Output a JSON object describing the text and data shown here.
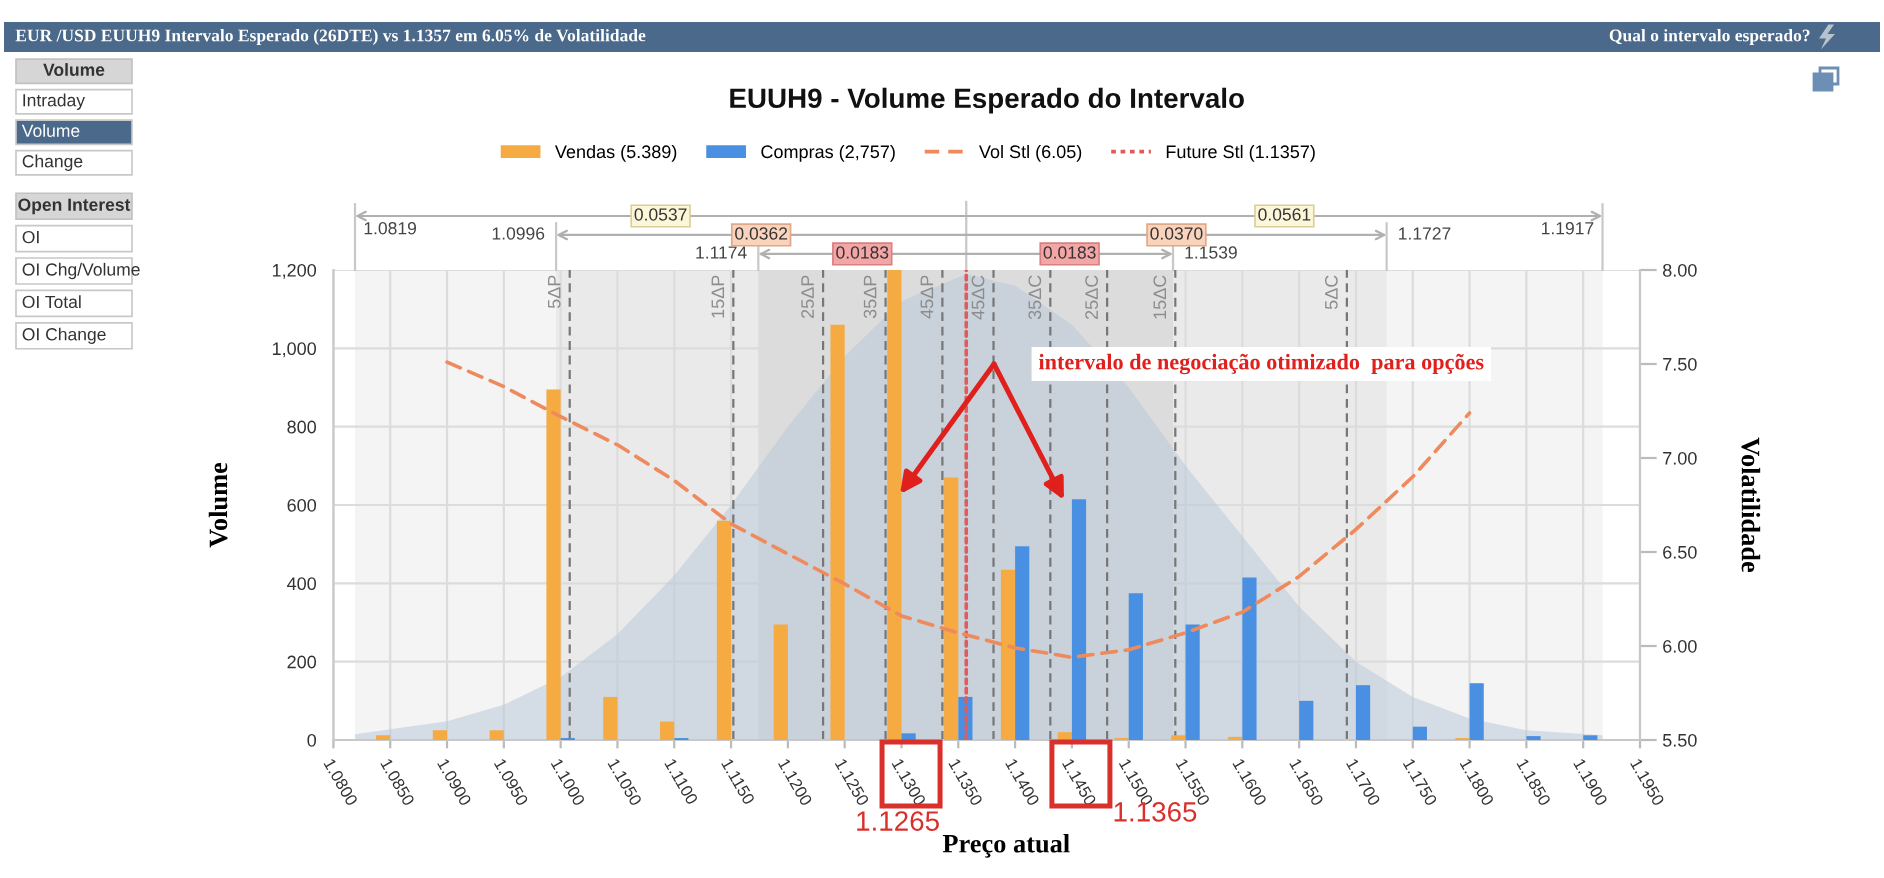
{
  "chart_data": [
    {
      "type": "other",
      "title": "EUR /USD EUUH9 Intervalo Esperado (26DTE) vs 1.1357 em 6.05% de Volatilidade",
      "annotations": [
        "Qual o intervalo esperado?"
      ]
    },
    {
      "type": "other",
      "title": "Volume",
      "annotations": [
        "Intraday",
        "Volume",
        "Change"
      ]
    },
    {
      "type": "other",
      "title": "Open Interest",
      "annotations": [
        "OI",
        "OI Chg/Volume",
        "OI Total",
        "OI Change"
      ]
    },
    {
      "type": "bar",
      "title": "EUUH9 - Volume Esperado do Intervalo",
      "xlabel": "Preço atual",
      "ylabel": "Volume",
      "y2label": "Volatilidade",
      "x": [
        1.085,
        1.09,
        1.095,
        1.1,
        1.105,
        1.11,
        1.115,
        1.12,
        1.125,
        1.13,
        1.135,
        1.14,
        1.145,
        1.15,
        1.155,
        1.16,
        1.165,
        1.17,
        1.175,
        1.18,
        1.185,
        1.19
      ],
      "series": [
        {
          "name": "Vendas (5.389)",
          "color": "#f5aa42",
          "values": [
            12,
            25,
            25,
            895,
            110,
            47,
            560,
            295,
            1060,
            1200,
            670,
            435,
            20,
            5,
            12,
            8,
            null,
            null,
            null,
            5,
            null,
            null
          ]
        },
        {
          "name": "Compras (2,757)",
          "color": "#4a90e2",
          "values": [
            null,
            null,
            null,
            5,
            null,
            5,
            null,
            null,
            null,
            17,
            110,
            495,
            615,
            375,
            295,
            415,
            100,
            140,
            34,
            145,
            10,
            12
          ]
        },
        {
          "name": "Vol Stl (6.05)",
          "type": "line",
          "axis": "y2",
          "color": "#ee8a5c",
          "x": [
            1.09,
            1.095,
            1.1,
            1.105,
            1.11,
            1.115,
            1.12,
            1.125,
            1.13,
            1.135,
            1.14,
            1.145,
            1.15,
            1.155,
            1.16,
            1.165,
            1.17,
            1.175,
            1.18
          ],
          "values": [
            7.51,
            7.38,
            7.22,
            7.07,
            6.88,
            6.65,
            6.49,
            6.33,
            6.16,
            6.07,
            5.99,
            5.94,
            5.98,
            6.07,
            6.18,
            6.37,
            6.62,
            6.9,
            7.24
          ]
        },
        {
          "name": "Future Stl (1.1357)",
          "type": "line",
          "line_style": "dotted",
          "color": "#e05c5c",
          "x": [
            1.1357,
            1.1357
          ],
          "values": [
            0,
            1200
          ]
        },
        {
          "type": "area",
          "color": "#b9c9da",
          "x": [
            1.0819,
            1.09,
            1.095,
            1.1,
            1.105,
            1.11,
            1.115,
            1.12,
            1.125,
            1.13,
            1.1357,
            1.14,
            1.145,
            1.15,
            1.155,
            1.16,
            1.165,
            1.17,
            1.175,
            1.18,
            1.185,
            1.1917
          ],
          "values": [
            15,
            48,
            90,
            160,
            270,
            420,
            600,
            800,
            980,
            1120,
            1190,
            1160,
            1060,
            900,
            700,
            520,
            340,
            200,
            110,
            55,
            25,
            12
          ]
        }
      ],
      "xlim": [
        1.08,
        1.195
      ],
      "xticks": [
        {
          "value": 1.08,
          "label": "1.0800"
        },
        {
          "value": 1.085,
          "label": "1.0850"
        },
        {
          "value": 1.09,
          "label": "1.0900"
        },
        {
          "value": 1.095,
          "label": "1.0950"
        },
        {
          "value": 1.1,
          "label": "1.1000"
        },
        {
          "value": 1.105,
          "label": "1.1050"
        },
        {
          "value": 1.11,
          "label": "1.1100"
        },
        {
          "value": 1.115,
          "label": "1.1150"
        },
        {
          "value": 1.12,
          "label": "1.1200"
        },
        {
          "value": 1.125,
          "label": "1.1250"
        },
        {
          "value": 1.13,
          "label": "1.1300"
        },
        {
          "value": 1.135,
          "label": "1.1350"
        },
        {
          "value": 1.14,
          "label": "1.1400"
        },
        {
          "value": 1.145,
          "label": "1.1450"
        },
        {
          "value": 1.15,
          "label": "1.1500"
        },
        {
          "value": 1.155,
          "label": "1.1550"
        },
        {
          "value": 1.16,
          "label": "1.1600"
        },
        {
          "value": 1.165,
          "label": "1.1650"
        },
        {
          "value": 1.17,
          "label": "1.1700"
        },
        {
          "value": 1.175,
          "label": "1.1750"
        },
        {
          "value": 1.18,
          "label": "1.1800"
        },
        {
          "value": 1.185,
          "label": "1.1850"
        },
        {
          "value": 1.19,
          "label": "1.1900"
        },
        {
          "value": 1.195,
          "label": "1.1950"
        }
      ],
      "ylim": [
        0,
        1200
      ],
      "yticks": [
        0,
        200,
        400,
        600,
        800,
        {
          "value": 1000,
          "label": "1,000"
        },
        {
          "value": 1200,
          "label": "1,200"
        }
      ],
      "y2lim": [
        5.5,
        8
      ],
      "y2ticks": [
        {
          "value": 5.5,
          "label": "5.50"
        },
        {
          "value": 6,
          "label": "6.00"
        },
        {
          "value": 6.5,
          "label": "6.50"
        },
        {
          "value": 7,
          "label": "7.00"
        },
        {
          "value": 7.5,
          "label": "7.50"
        },
        {
          "value": 8,
          "label": "8.00"
        }
      ],
      "bands": [
        {
          "axis": "x",
          "from": 1.0819,
          "to": 1.1357,
          "label": "0.0537",
          "color": "#f4f4f4"
        },
        {
          "axis": "x",
          "from": 1.1357,
          "to": 1.1917,
          "label": "0.0561",
          "color": "#f4f4f4"
        },
        {
          "axis": "x",
          "from": 1.0996,
          "to": 1.1357,
          "label": "0.0362",
          "color": "#eaeaea"
        },
        {
          "axis": "x",
          "from": 1.1357,
          "to": 1.1727,
          "label": "0.0370",
          "color": "#eaeaea"
        },
        {
          "axis": "x",
          "from": 1.1174,
          "to": 1.1357,
          "label": "0.0183",
          "color": "#dcdcdc"
        },
        {
          "axis": "x",
          "from": 1.1357,
          "to": 1.1539,
          "label": "0.0183",
          "color": "#dcdcdc"
        }
      ],
      "ref_lines": [
        {
          "axis": "x",
          "value": 1.1008,
          "label": "5ΔP",
          "color": "#777777",
          "line_style": "dashed"
        },
        {
          "axis": "x",
          "value": 1.1152,
          "label": "15ΔP",
          "color": "#777777",
          "line_style": "dashed"
        },
        {
          "axis": "x",
          "value": 1.1231,
          "label": "25ΔP",
          "color": "#777777",
          "line_style": "dashed"
        },
        {
          "axis": "x",
          "value": 1.1286,
          "label": "35ΔP",
          "color": "#777777",
          "line_style": "dashed"
        },
        {
          "axis": "x",
          "value": 1.1336,
          "label": "45ΔP",
          "color": "#777777",
          "line_style": "dashed"
        },
        {
          "axis": "x",
          "value": 1.1381,
          "label": "45ΔC",
          "color": "#777777",
          "line_style": "dashed"
        },
        {
          "axis": "x",
          "value": 1.1431,
          "label": "35ΔC",
          "color": "#777777",
          "line_style": "dashed"
        },
        {
          "axis": "x",
          "value": 1.1481,
          "label": "25ΔC",
          "color": "#777777",
          "line_style": "dashed"
        },
        {
          "axis": "x",
          "value": 1.1541,
          "label": "15ΔC",
          "color": "#777777",
          "line_style": "dashed"
        },
        {
          "axis": "x",
          "value": 1.1692,
          "label": "5ΔC",
          "color": "#777777",
          "line_style": "dashed"
        }
      ],
      "annotations": [
        "intervalo de negociação otimizado  para opções",
        "1.1265",
        "1.1365",
        "1.0819",
        "1.1917",
        "1.0996",
        "1.1727",
        "1.1174",
        "1.1539"
      ],
      "grid": true,
      "legend": "top",
      "line_style": "dashed"
    }
  ]
}
